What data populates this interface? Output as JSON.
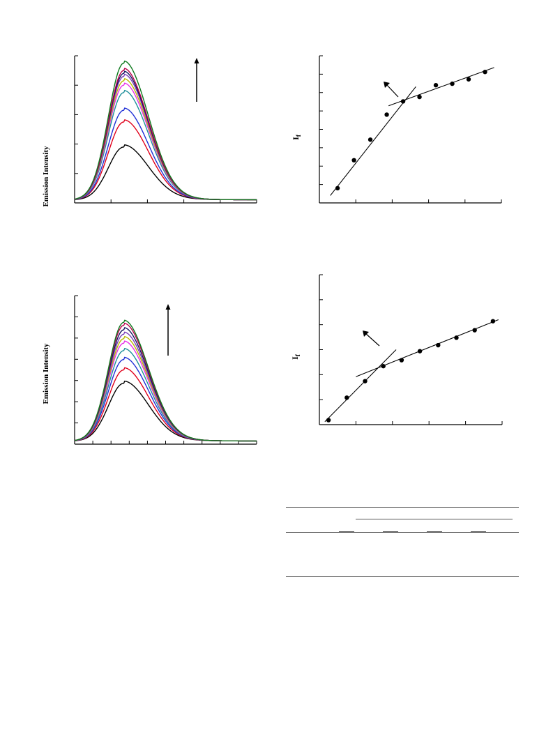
{
  "chart_data": [
    {
      "type": "line",
      "id": "spectra-top",
      "ylabel": "Emission Intensity",
      "xlim": [
        0,
        100
      ],
      "ylim": [
        0,
        100
      ],
      "peak_x": 27,
      "baseline": 2,
      "series_colors": [
        "#000000",
        "#e0001b",
        "#1f2fd6",
        "#1e8f9a",
        "#e830e8",
        "#b9b900",
        "#7a3fb8",
        "#151560",
        "#b8004a",
        "#0f7a1f"
      ],
      "series_peaks": [
        38,
        55,
        63,
        75,
        80,
        83,
        86,
        88,
        90,
        95
      ],
      "arrow": "up"
    },
    {
      "type": "scatter",
      "id": "scatter-top",
      "ylabel": "I",
      "ylabel_sub": "f",
      "xlim": [
        0,
        100
      ],
      "ylim": [
        0,
        100
      ],
      "x": [
        10,
        19,
        28,
        37,
        46,
        55,
        64,
        73,
        82,
        91
      ],
      "y": [
        10,
        29,
        43,
        60,
        69,
        72,
        80,
        81,
        84,
        89
      ],
      "fit_lines": [
        [
          [
            6,
            5
          ],
          [
            53,
            79
          ]
        ],
        [
          [
            38,
            66
          ],
          [
            96,
            92
          ]
        ]
      ],
      "arrow": "up-left"
    },
    {
      "type": "line",
      "id": "spectra-bottom",
      "ylabel": "Emission Intensity",
      "xlim": [
        0,
        100
      ],
      "ylim": [
        0,
        100
      ],
      "peak_x": 27,
      "baseline": 2,
      "series_colors": [
        "#000000",
        "#e0001b",
        "#1f2fd6",
        "#1e8f9a",
        "#e830e8",
        "#b9b900",
        "#7a3fb8",
        "#151560",
        "#b8004a",
        "#0f7a1f"
      ],
      "series_peaks": [
        41,
        50,
        57,
        63,
        68,
        71,
        74,
        77,
        80,
        82
      ],
      "arrow": "up"
    },
    {
      "type": "scatter",
      "id": "scatter-bottom",
      "ylabel": "I",
      "ylabel_sub": "f",
      "xlim": [
        0,
        100
      ],
      "ylim": [
        0,
        100
      ],
      "x": [
        5,
        15,
        25,
        35,
        45,
        55,
        65,
        75,
        85,
        95
      ],
      "y": [
        3,
        18,
        29,
        39,
        43,
        49,
        53,
        58,
        63,
        69
      ],
      "fit_lines": [
        [
          [
            3,
            2
          ],
          [
            42,
            50
          ]
        ],
        [
          [
            20,
            32
          ],
          [
            98,
            70
          ]
        ]
      ],
      "arrow": "up-left"
    }
  ],
  "table": {
    "rule_color": "#555555"
  }
}
